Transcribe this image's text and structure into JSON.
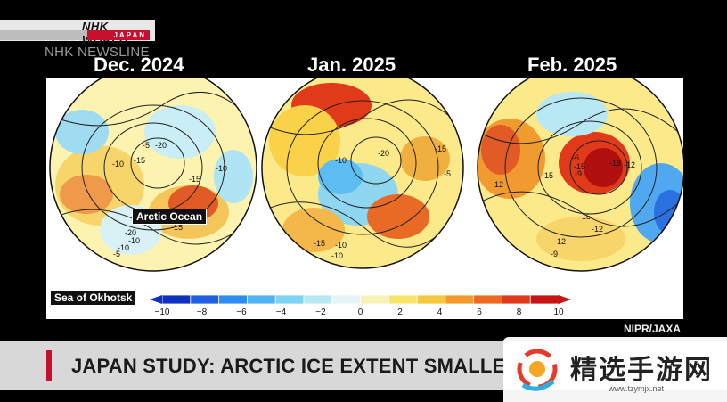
{
  "broadcaster": {
    "logo_main": "NHK WORLD",
    "logo_sub": "JAPAN",
    "program": "NHK NEWSLINE"
  },
  "maps": [
    {
      "month": "Dec. 2024",
      "contour_labels": [
        "-5",
        "-20",
        "-15",
        "-10",
        "-10",
        "-15",
        "-15",
        "-10",
        "-20",
        "-10",
        "-5"
      ]
    },
    {
      "month": "Jan. 2025",
      "contour_labels": [
        "-10",
        "-20",
        "-15",
        "-5",
        "-10",
        "-15",
        "-10"
      ]
    },
    {
      "month": "Feb. 2025",
      "contour_labels": [
        "-12",
        "-15",
        "-9",
        "-6",
        "-15",
        "-18",
        "-12",
        "-15",
        "-12",
        "-12",
        "-9"
      ]
    }
  ],
  "annotations": {
    "arctic_ocean": "Arctic Ocean",
    "sea_of_okhotsk": "Sea of Okhotsk"
  },
  "colorbar": {
    "ticks": [
      "−10",
      "−8",
      "−6",
      "−4",
      "−2",
      "0",
      "2",
      "4",
      "6",
      "8",
      "10"
    ],
    "colors": [
      "#1030c0",
      "#1f5fe0",
      "#2f8cf0",
      "#4fb5f5",
      "#7fd3f5",
      "#b9e8f5",
      "#e4f4f7",
      "#f7f2b5",
      "#f9e46a",
      "#f8c740",
      "#f39a2d",
      "#ec6a22",
      "#e03a1a",
      "#c81414"
    ]
  },
  "credit": "NIPR/JAXA",
  "headline": "JAPAN STUDY: ARCTIC ICE EXTENT SMALLE",
  "watermark": {
    "title": "精选手游网",
    "url": "www.tzymjx.net"
  }
}
